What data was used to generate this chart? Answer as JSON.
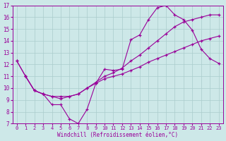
{
  "xlabel": "Windchill (Refroidissement éolien,°C)",
  "background_color": "#cde8e8",
  "grid_color": "#aacccc",
  "line_color": "#990099",
  "xlim": [
    -0.5,
    23.5
  ],
  "ylim": [
    7,
    17
  ],
  "x_ticks": [
    0,
    1,
    2,
    3,
    4,
    5,
    6,
    7,
    8,
    9,
    10,
    11,
    12,
    13,
    14,
    15,
    16,
    17,
    18,
    19,
    20,
    21,
    22,
    23
  ],
  "y_ticks": [
    7,
    8,
    9,
    10,
    11,
    12,
    13,
    14,
    15,
    16,
    17
  ],
  "line1_x": [
    0,
    1,
    2,
    3,
    4,
    5,
    6,
    7,
    8,
    9,
    10,
    11,
    12,
    13,
    14,
    15,
    16,
    17,
    18,
    19,
    20,
    21,
    22,
    23
  ],
  "line1_y": [
    12.3,
    11.0,
    9.8,
    9.5,
    8.6,
    8.6,
    7.4,
    7.0,
    8.2,
    10.4,
    11.6,
    11.5,
    11.6,
    14.1,
    14.5,
    15.8,
    16.8,
    17.0,
    16.2,
    15.8,
    14.9,
    13.3,
    12.5,
    12.1
  ],
  "line2_x": [
    1,
    2,
    3,
    4,
    5,
    6,
    7,
    8,
    9,
    10,
    11,
    12,
    13,
    14,
    15,
    16,
    17,
    18,
    19,
    20,
    21,
    22,
    23
  ],
  "line2_y": [
    11.0,
    9.8,
    9.5,
    9.3,
    9.3,
    9.3,
    9.5,
    10.0,
    10.4,
    10.8,
    11.0,
    11.2,
    11.5,
    11.8,
    12.2,
    12.5,
    12.8,
    13.1,
    13.4,
    13.7,
    14.0,
    14.2,
    14.4
  ],
  "line3_x": [
    0,
    1,
    2,
    3,
    4,
    5,
    6,
    7,
    8,
    9,
    10,
    11,
    12,
    13,
    14,
    15,
    16,
    17,
    18,
    19,
    20,
    21,
    22,
    23
  ],
  "line3_y": [
    12.3,
    11.0,
    9.8,
    9.5,
    9.3,
    9.1,
    9.3,
    9.5,
    10.0,
    10.5,
    11.0,
    11.3,
    11.7,
    12.3,
    12.8,
    13.4,
    14.0,
    14.6,
    15.2,
    15.6,
    15.8,
    16.0,
    16.2,
    16.2
  ]
}
